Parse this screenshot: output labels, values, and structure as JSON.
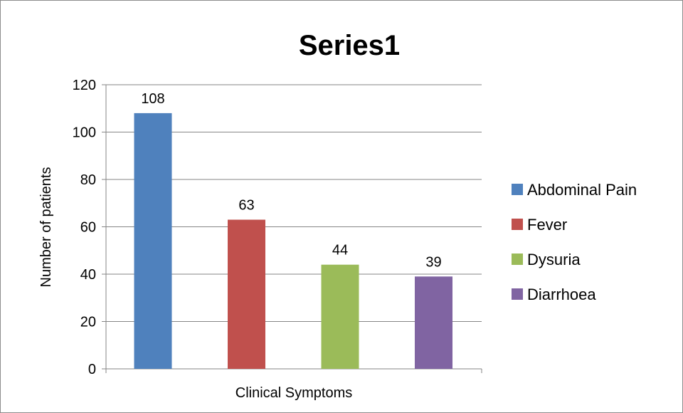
{
  "chart_data": {
    "type": "bar",
    "title": "Series1",
    "xlabel": "Clinical Symptoms",
    "ylabel": "Number of patients",
    "categories": [
      "Abdominal Pain",
      "Fever",
      "Dysuria",
      "Diarrhoea"
    ],
    "values": [
      108,
      63,
      44,
      39
    ],
    "data_labels": [
      "108",
      "63",
      "44",
      "39"
    ],
    "colors": [
      "#4F81BD",
      "#C0504D",
      "#9BBB59",
      "#8064A2"
    ],
    "ylim": [
      0,
      120
    ],
    "yticks": [
      0,
      20,
      40,
      60,
      80,
      100,
      120
    ],
    "ytick_labels": [
      "0",
      "20",
      "40",
      "60",
      "80",
      "100",
      "120"
    ],
    "grid": true,
    "legend": {
      "placement": "right",
      "entries": [
        "Abdominal Pain",
        "Fever",
        "Dysuria",
        "Diarrhoea"
      ]
    }
  }
}
